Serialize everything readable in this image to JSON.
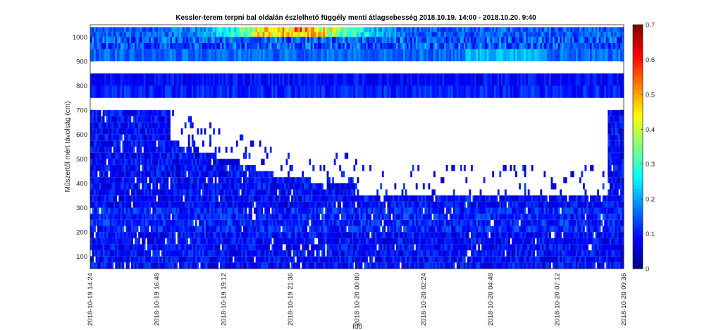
{
  "chart_data": {
    "type": "heatmap",
    "title": "Kessler-terem terpni bal oldalán észlelhető függély menti átlagsebesség 2018.10.19. 14:00 - 2018.10.20. 9:40",
    "xlabel": "Idő",
    "ylabel": "Műszertől mért távolság (cm)",
    "x_range": [
      "2018-10-19 14:24",
      "2018-10-20 09:36"
    ],
    "x_ticks": [
      "2018-10-19 14:24",
      "2018-10-19 16:48",
      "2018-10-19 19:12",
      "2018-10-19 21:36",
      "2018-10-20 00:00",
      "2018-10-20 02:24",
      "2018-10-20 04:48",
      "2018-10-20 07:12",
      "2018-10-20 09:36"
    ],
    "y_range": [
      50,
      1050
    ],
    "y_ticks": [
      "100",
      "200",
      "300",
      "400",
      "500",
      "600",
      "700",
      "800",
      "900",
      "1000"
    ],
    "colorbar": {
      "min": 0,
      "max": 0.7,
      "ticks": [
        "0",
        "0.1",
        "0.2",
        "0.3",
        "0.4",
        "0.5",
        "0.6",
        "0.7"
      ],
      "colormap": "jet"
    },
    "bands": [
      {
        "from_cm": 950,
        "to_cm": 1040,
        "description": "mostly 0.1–0.25 with hotspot ~0.4–0.6 around 19:00–00:30"
      },
      {
        "from_cm": 900,
        "to_cm": 950,
        "description": "~0.15–0.2, higher near 06:00"
      },
      {
        "from_cm": 750,
        "to_cm": 850,
        "description": "~0.05–0.15"
      },
      {
        "from_cm": 50,
        "to_cm": 700,
        "description": "~0.0–0.15, gaps (no data) increasing with distance and time"
      }
    ],
    "gaps_cm": [
      [
        850,
        900
      ],
      [
        700,
        750
      ]
    ],
    "grid": false
  }
}
